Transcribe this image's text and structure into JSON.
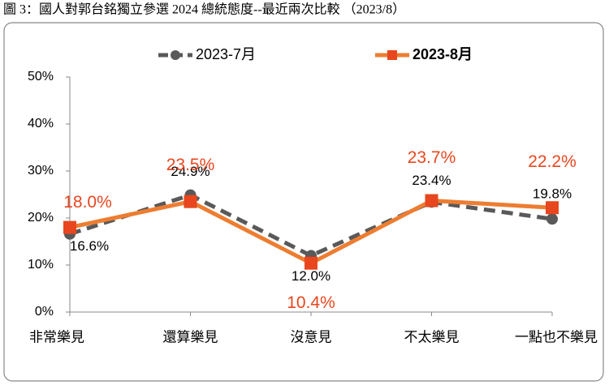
{
  "chart_data": {
    "type": "line",
    "title": "圖 3：國人對郭台銘獨立參選 2024 總統態度--最近兩次比較 （2023/8）",
    "categories": [
      "非常樂見",
      "還算樂見",
      "沒意見",
      "不太樂見",
      "一點也不樂見"
    ],
    "series": [
      {
        "name": "2023-7月",
        "color": "#595959",
        "values": [
          16.6,
          24.9,
          12.0,
          23.4,
          19.8
        ],
        "value_labels": [
          "16.6%",
          "24.9%",
          "12.0%",
          "23.4%",
          "19.8%"
        ]
      },
      {
        "name": "2023-8月",
        "color": "#ED7D31",
        "values": [
          18.0,
          23.5,
          10.4,
          23.7,
          22.2
        ],
        "value_labels": [
          "18.0%",
          "23.5%",
          "10.4%",
          "23.7%",
          "22.2%"
        ]
      }
    ],
    "ylim": [
      0,
      50
    ],
    "yticks": [
      {
        "value": 0,
        "label": "0%"
      },
      {
        "value": 10,
        "label": "10%"
      },
      {
        "value": 20,
        "label": "20%"
      },
      {
        "value": 30,
        "label": "30%"
      },
      {
        "value": 40,
        "label": "40%"
      },
      {
        "value": 50,
        "label": "50%"
      }
    ],
    "legend": "top"
  }
}
